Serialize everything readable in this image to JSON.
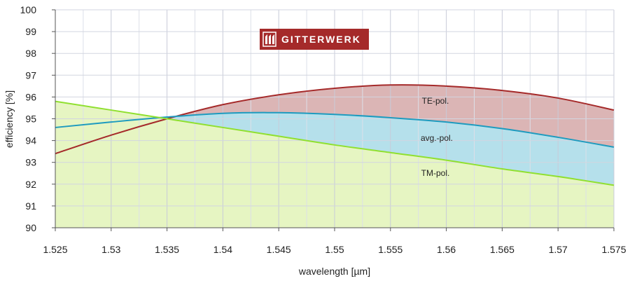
{
  "chart_data": {
    "type": "area",
    "xlabel": "wavelength [µm]",
    "ylabel": "efficiency [%]",
    "xlim": [
      1.525,
      1.575
    ],
    "ylim": [
      90,
      100
    ],
    "x_ticks": [
      "1.525",
      "1.53",
      "1.535",
      "1.54",
      "1.545",
      "1.55",
      "1.555",
      "1.56",
      "1.565",
      "1.57",
      "1.575"
    ],
    "y_ticks": [
      "90",
      "91",
      "92",
      "93",
      "94",
      "95",
      "96",
      "97",
      "98",
      "99",
      "100"
    ],
    "grid": true,
    "x": [
      1.525,
      1.53,
      1.535,
      1.54,
      1.545,
      1.55,
      1.555,
      1.56,
      1.565,
      1.57,
      1.575
    ],
    "series": [
      {
        "name": "TE-pol.",
        "color": "#a52a2a",
        "fill": "#dbb5b5",
        "values": [
          93.4,
          94.25,
          95.0,
          95.65,
          96.1,
          96.4,
          96.55,
          96.5,
          96.3,
          95.95,
          95.4
        ]
      },
      {
        "name": "avg.-pol.",
        "color": "#1e9bbf",
        "fill": "#b5e0eb",
        "values": [
          94.6,
          94.85,
          95.08,
          95.25,
          95.28,
          95.2,
          95.05,
          94.85,
          94.55,
          94.15,
          93.7
        ]
      },
      {
        "name": "TM-pol.",
        "color": "#90e030",
        "fill": "#e6f5c2",
        "values": [
          95.8,
          95.4,
          95.0,
          94.6,
          94.2,
          93.8,
          93.45,
          93.1,
          92.7,
          92.35,
          91.95
        ]
      }
    ],
    "logo": {
      "text": "GITTERWERK",
      "bg_color": "#a52a2a",
      "fg_color": "#ffffff"
    }
  }
}
